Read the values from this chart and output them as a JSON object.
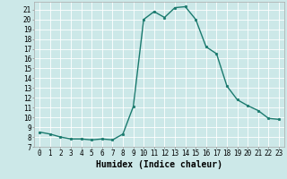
{
  "x": [
    0,
    1,
    2,
    3,
    4,
    5,
    6,
    7,
    8,
    9,
    10,
    11,
    12,
    13,
    14,
    15,
    16,
    17,
    18,
    19,
    20,
    21,
    22,
    23
  ],
  "y": [
    8.5,
    8.3,
    8.0,
    7.8,
    7.8,
    7.7,
    7.8,
    7.7,
    8.3,
    11.1,
    20.0,
    20.8,
    20.2,
    21.2,
    21.3,
    20.0,
    17.2,
    16.5,
    13.2,
    11.8,
    11.2,
    10.7,
    9.9,
    9.8
  ],
  "line_color": "#1a7a6e",
  "marker": "o",
  "markersize": 1.8,
  "linewidth": 1.0,
  "xlabel": "Humidex (Indice chaleur)",
  "xlim": [
    -0.5,
    23.5
  ],
  "ylim": [
    7,
    21.8
  ],
  "yticks": [
    7,
    8,
    9,
    10,
    11,
    12,
    13,
    14,
    15,
    16,
    17,
    18,
    19,
    20,
    21
  ],
  "xticks": [
    0,
    1,
    2,
    3,
    4,
    5,
    6,
    7,
    8,
    9,
    10,
    11,
    12,
    13,
    14,
    15,
    16,
    17,
    18,
    19,
    20,
    21,
    22,
    23
  ],
  "bg_color": "#cce8e8",
  "grid_color": "#ffffff",
  "tick_fontsize": 5.5,
  "xlabel_fontsize": 7.0
}
